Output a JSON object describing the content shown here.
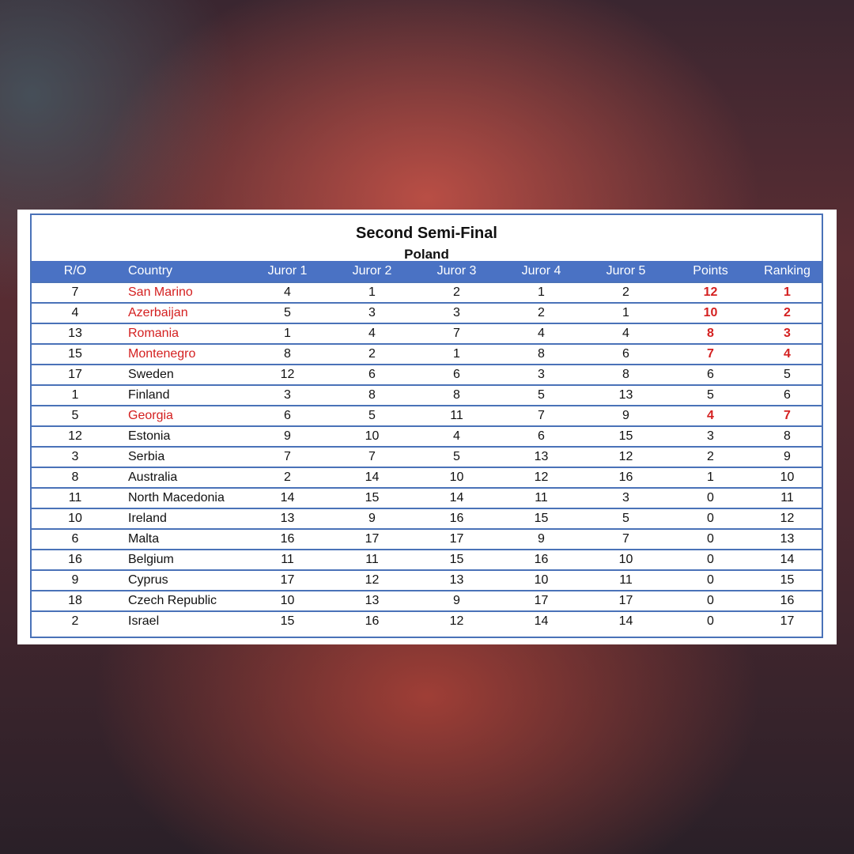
{
  "title": "Second Semi-Final",
  "subtitle": "Poland",
  "highlight_color": "#d42020",
  "header_color": "#4a72c4",
  "columns": [
    "R/O",
    "Country",
    "Juror 1",
    "Juror 2",
    "Juror 3",
    "Juror 4",
    "Juror 5",
    "Points",
    "Ranking"
  ],
  "rows": [
    {
      "ro": "7",
      "country": "San Marino",
      "j": [
        "4",
        "1",
        "2",
        "1",
        "2"
      ],
      "points": "12",
      "ranking": "1",
      "highlighted": true
    },
    {
      "ro": "4",
      "country": "Azerbaijan",
      "j": [
        "5",
        "3",
        "3",
        "2",
        "1"
      ],
      "points": "10",
      "ranking": "2",
      "highlighted": true
    },
    {
      "ro": "13",
      "country": "Romania",
      "j": [
        "1",
        "4",
        "7",
        "4",
        "4"
      ],
      "points": "8",
      "ranking": "3",
      "highlighted": true
    },
    {
      "ro": "15",
      "country": "Montenegro",
      "j": [
        "8",
        "2",
        "1",
        "8",
        "6"
      ],
      "points": "7",
      "ranking": "4",
      "highlighted": true
    },
    {
      "ro": "17",
      "country": "Sweden",
      "j": [
        "12",
        "6",
        "6",
        "3",
        "8"
      ],
      "points": "6",
      "ranking": "5",
      "highlighted": false
    },
    {
      "ro": "1",
      "country": "Finland",
      "j": [
        "3",
        "8",
        "8",
        "5",
        "13"
      ],
      "points": "5",
      "ranking": "6",
      "highlighted": false
    },
    {
      "ro": "5",
      "country": "Georgia",
      "j": [
        "6",
        "5",
        "11",
        "7",
        "9"
      ],
      "points": "4",
      "ranking": "7",
      "highlighted": true
    },
    {
      "ro": "12",
      "country": "Estonia",
      "j": [
        "9",
        "10",
        "4",
        "6",
        "15"
      ],
      "points": "3",
      "ranking": "8",
      "highlighted": false
    },
    {
      "ro": "3",
      "country": "Serbia",
      "j": [
        "7",
        "7",
        "5",
        "13",
        "12"
      ],
      "points": "2",
      "ranking": "9",
      "highlighted": false
    },
    {
      "ro": "8",
      "country": "Australia",
      "j": [
        "2",
        "14",
        "10",
        "12",
        "16"
      ],
      "points": "1",
      "ranking": "10",
      "highlighted": false
    },
    {
      "ro": "11",
      "country": "North Macedonia",
      "j": [
        "14",
        "15",
        "14",
        "11",
        "3"
      ],
      "points": "0",
      "ranking": "11",
      "highlighted": false
    },
    {
      "ro": "10",
      "country": "Ireland",
      "j": [
        "13",
        "9",
        "16",
        "15",
        "5"
      ],
      "points": "0",
      "ranking": "12",
      "highlighted": false
    },
    {
      "ro": "6",
      "country": "Malta",
      "j": [
        "16",
        "17",
        "17",
        "9",
        "7"
      ],
      "points": "0",
      "ranking": "13",
      "highlighted": false
    },
    {
      "ro": "16",
      "country": "Belgium",
      "j": [
        "11",
        "11",
        "15",
        "16",
        "10"
      ],
      "points": "0",
      "ranking": "14",
      "highlighted": false
    },
    {
      "ro": "9",
      "country": "Cyprus",
      "j": [
        "17",
        "12",
        "13",
        "10",
        "11"
      ],
      "points": "0",
      "ranking": "15",
      "highlighted": false
    },
    {
      "ro": "18",
      "country": "Czech Republic",
      "j": [
        "10",
        "13",
        "9",
        "17",
        "17"
      ],
      "points": "0",
      "ranking": "16",
      "highlighted": false
    },
    {
      "ro": "2",
      "country": "Israel",
      "j": [
        "15",
        "16",
        "12",
        "14",
        "14"
      ],
      "points": "0",
      "ranking": "17",
      "highlighted": false
    }
  ]
}
